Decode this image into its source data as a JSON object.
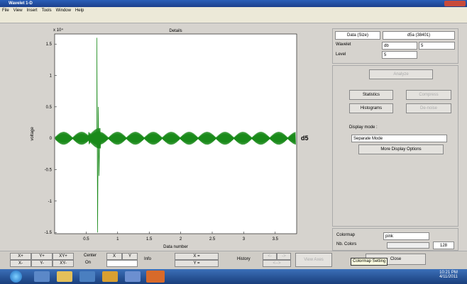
{
  "window": {
    "title": "Wavelet 1-D",
    "menu": [
      "File",
      "View",
      "Insert",
      "Tools",
      "Window",
      "Help"
    ]
  },
  "plot": {
    "title": "Details",
    "multiplier": "x 10⁴",
    "xlabel": "Data number",
    "ylabel": "voltage",
    "series_label": "d5",
    "xlim": [
      0,
      3.84
    ],
    "ylim": [
      -1.52,
      1.66
    ],
    "xticks": [
      0.5,
      1,
      1.5,
      2,
      2.5,
      3,
      3.5
    ],
    "yticks": [
      -1.5,
      -1,
      -0.5,
      0,
      0.5,
      1,
      1.5
    ],
    "color": "#1a8a1a"
  },
  "panel": {
    "data_label": "Data (Size)",
    "data_value": "d5a (38401)",
    "wavelet_label": "Wavelet",
    "wavelet": "db",
    "wavelet_order": "5",
    "level_label": "Level",
    "level": "5",
    "analyze": "Analyze",
    "statistics": "Statistics",
    "compress": "Compress",
    "histograms": "Histograms",
    "denoise": "De-noise",
    "display_mode_label": "Display mode :",
    "display_mode": "Separate Mode",
    "more_options": "More Display Options",
    "colormap_label": "Colormap",
    "colormap": "pink",
    "nb_colors_label": "Nb. Colors",
    "nb_colors": "128"
  },
  "bottom": {
    "zoom": [
      "X+",
      "Y+",
      "XY+",
      "X-",
      "Y-",
      "XY-"
    ],
    "center": "Center",
    "center_state": "On",
    "x": "X",
    "y": "Y",
    "info": "Info",
    "x_eq": "X =",
    "y_eq": "Y =",
    "history": "History",
    "back": "<-",
    "forward": "->",
    "both": "<-->",
    "view_axes": "View Axes",
    "colormap_setting": "Colormap Setting",
    "close": "Close"
  },
  "taskbar": {
    "time": "10:21 PM",
    "date": "4/11/2011"
  }
}
